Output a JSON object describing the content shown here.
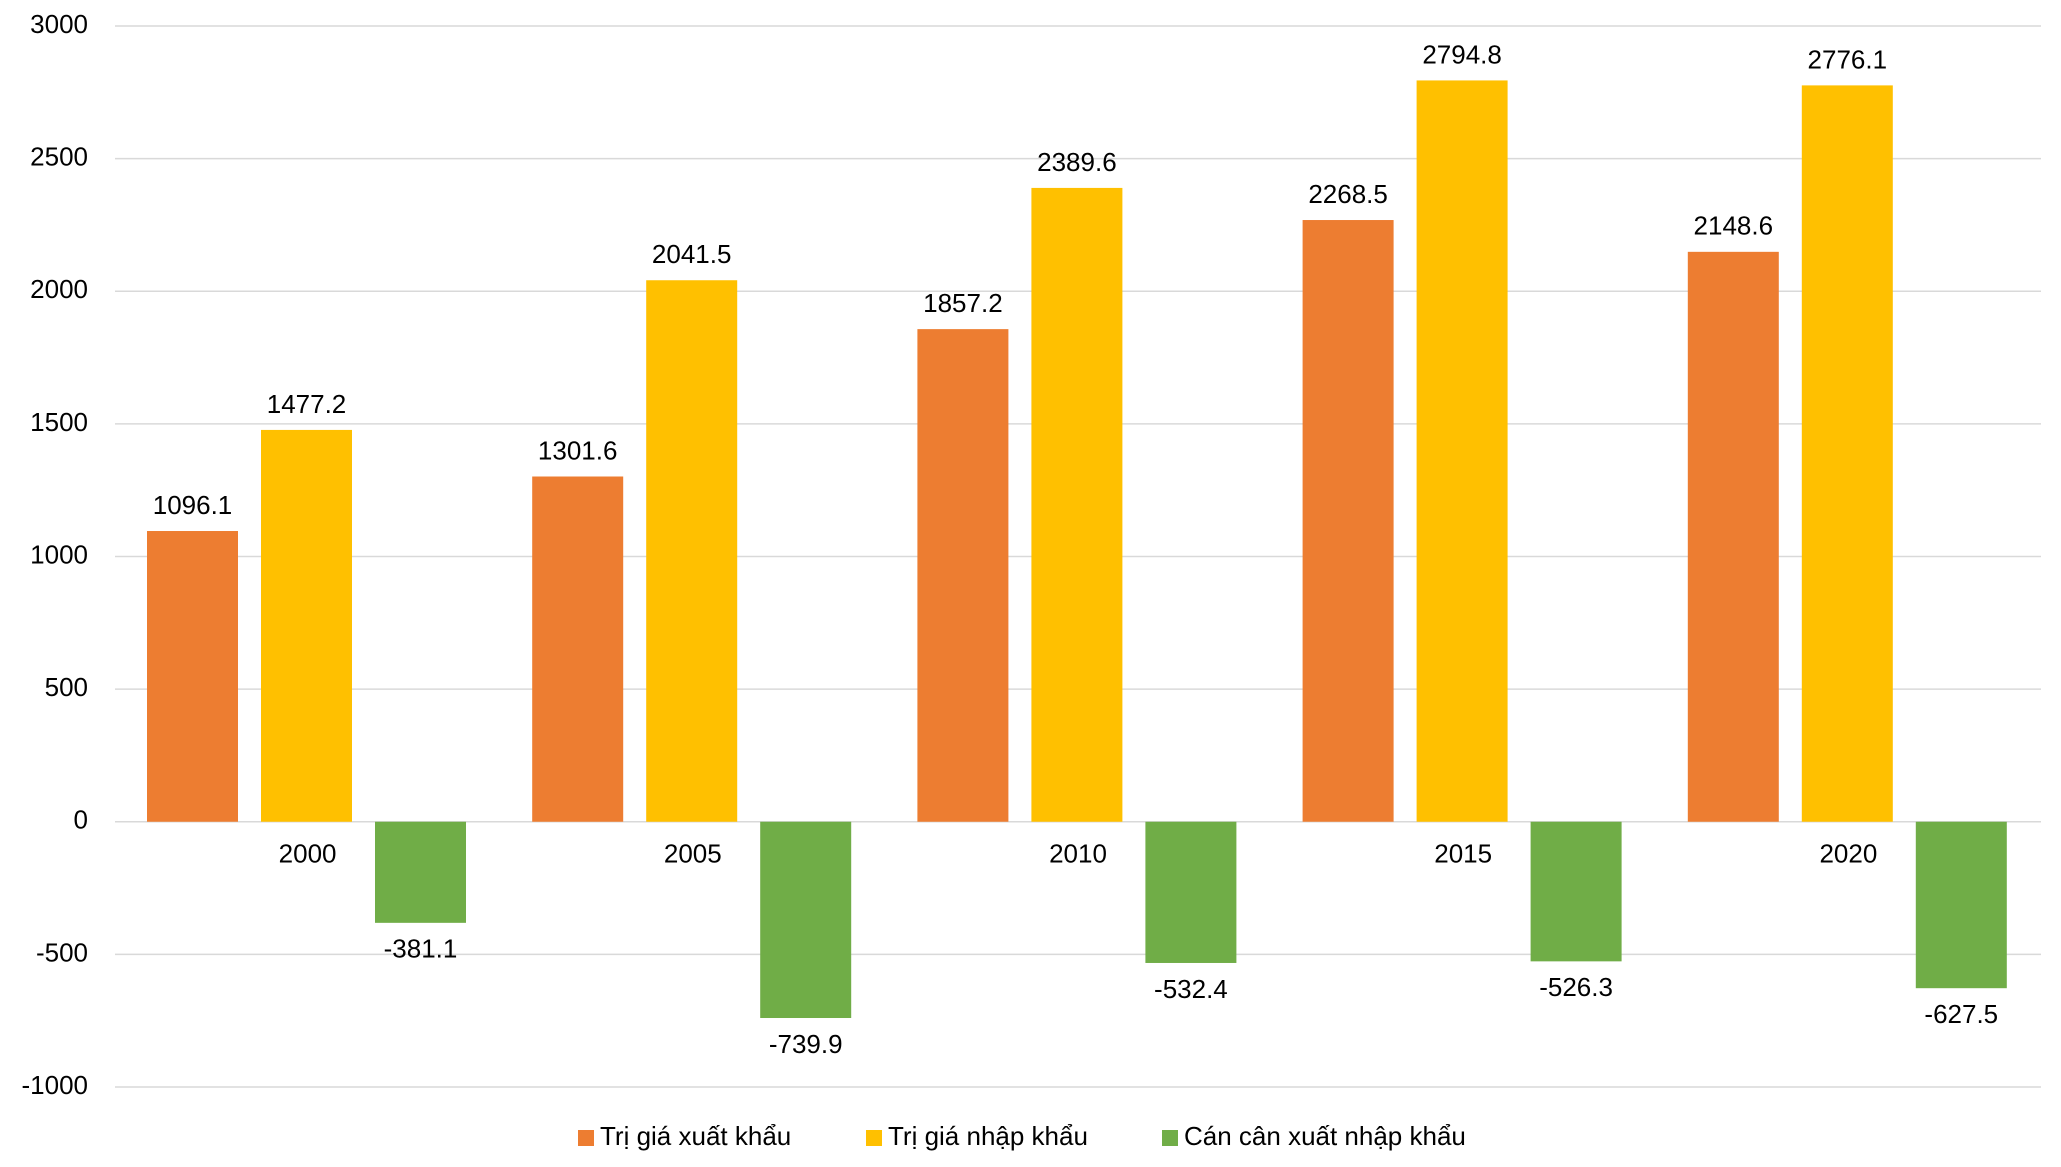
{
  "chart_data": {
    "type": "bar",
    "categories": [
      "2000",
      "2005",
      "2010",
      "2015",
      "2020"
    ],
    "series": [
      {
        "name": "Trị giá xuất khẩu",
        "color": "#ed7d31",
        "values": [
          1096.1,
          1301.6,
          1857.2,
          2268.5,
          2148.6
        ]
      },
      {
        "name": "Trị giá nhập khẩu",
        "color": "#ffc000",
        "values": [
          1477.2,
          2041.5,
          2389.6,
          2794.8,
          2776.1
        ]
      },
      {
        "name": "Cán cân xuất nhập khẩu",
        "color": "#70ad47",
        "values": [
          -381.1,
          -739.9,
          -532.4,
          -526.3,
          -627.5
        ]
      }
    ],
    "ylim": [
      -1000,
      3000
    ],
    "yticks": [
      -1000,
      -500,
      0,
      500,
      1000,
      1500,
      2000,
      2500,
      3000
    ],
    "grid": true,
    "legend": "bottom"
  }
}
